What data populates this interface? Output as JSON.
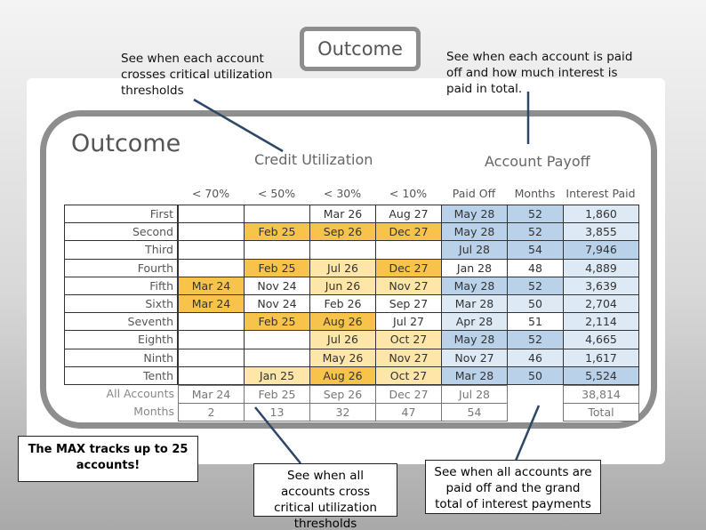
{
  "top_title": "Outcome",
  "callouts": {
    "utilization": "See when each account crosses critical utilization thresholds",
    "payoff": "See when each account is paid off and how much interest is paid in total.",
    "all_utilization": "See when all accounts cross critical utilization thresholds",
    "all_payoff": "See when all accounts are paid off and the grand total of interest payments",
    "max": "The MAX tracks up to 25 accounts!"
  },
  "panel": {
    "title": "Outcome",
    "group_headers": [
      "Credit Utilization",
      "Account Payoff"
    ],
    "columns": [
      "< 70%",
      "< 50%",
      "< 30%",
      "< 10%",
      "Paid Off",
      "Months",
      "Interest Paid"
    ],
    "rows": [
      {
        "label": "First",
        "cells": [
          null,
          null,
          "Mar 26",
          "Aug 27",
          "May 28",
          52,
          "1,860"
        ],
        "fills": [
          null,
          null,
          null,
          null,
          "#b9d2ea",
          "#b9d2ea",
          "#dde9f5"
        ]
      },
      {
        "label": "Second",
        "cells": [
          null,
          "Feb 25",
          "Sep 26",
          "Dec 27",
          "May 28",
          52,
          "3,855"
        ],
        "fills": [
          null,
          "#f7c34a",
          "#f7c34a",
          "#f7c34a",
          "#b9d2ea",
          "#b9d2ea",
          "#dde9f5"
        ]
      },
      {
        "label": "Third",
        "cells": [
          null,
          null,
          null,
          null,
          "Jul 28",
          54,
          "7,946"
        ],
        "fills": [
          null,
          null,
          null,
          null,
          "#b9d2ea",
          "#b9d2ea",
          "#b9d2ea"
        ]
      },
      {
        "label": "Fourth",
        "cells": [
          null,
          "Feb 25",
          "Jul 26",
          "Dec 27",
          "Jan 28",
          48,
          "4,889"
        ],
        "fills": [
          null,
          "#f7c34a",
          "#fde6a8",
          "#f7c34a",
          null,
          null,
          "#dde9f5"
        ]
      },
      {
        "label": "Fifth",
        "cells": [
          "Mar 24",
          "Nov 24",
          "Jun 26",
          "Nov 27",
          "May 28",
          52,
          "3,639"
        ],
        "fills": [
          "#f7c34a",
          null,
          "#fde6a8",
          "#fde6a8",
          "#b9d2ea",
          "#b9d2ea",
          "#dde9f5"
        ]
      },
      {
        "label": "Sixth",
        "cells": [
          "Mar 24",
          "Nov 24",
          "Feb 26",
          "Sep 27",
          "Mar 28",
          50,
          "2,704"
        ],
        "fills": [
          "#f7c34a",
          null,
          null,
          null,
          "#dde9f5",
          "#dde9f5",
          "#dde9f5"
        ]
      },
      {
        "label": "Seventh",
        "cells": [
          null,
          "Feb 25",
          "Aug 26",
          "Jul 27",
          "Apr 28",
          51,
          "2,114"
        ],
        "fills": [
          null,
          "#f7c34a",
          "#f7c34a",
          null,
          "#dde9f5",
          null,
          "#dde9f5"
        ]
      },
      {
        "label": "Eighth",
        "cells": [
          null,
          null,
          "Jul 26",
          "Oct 27",
          "May 28",
          52,
          "4,665"
        ],
        "fills": [
          null,
          null,
          "#fde6a8",
          "#fde6a8",
          "#b9d2ea",
          "#b9d2ea",
          "#dde9f5"
        ]
      },
      {
        "label": "Ninth",
        "cells": [
          null,
          null,
          "May 26",
          "Nov 27",
          "Nov 27",
          46,
          "1,617"
        ],
        "fills": [
          null,
          null,
          "#fde6a8",
          "#fde6a8",
          "#dde9f5",
          "#dde9f5",
          "#dde9f5"
        ]
      },
      {
        "label": "Tenth",
        "cells": [
          null,
          "Jan 25",
          "Aug 26",
          "Oct 27",
          "Mar 28",
          50,
          "5,524"
        ],
        "fills": [
          null,
          "#fde6a8",
          "#f7c34a",
          "#fde6a8",
          "#b9d2ea",
          "#b9d2ea",
          "#b9d2ea"
        ]
      }
    ],
    "summary": [
      {
        "label": "All Accounts",
        "cells": [
          "Mar 24",
          "Feb 25",
          "Sep 26",
          "Dec 27",
          "Jul 28",
          null,
          "38,814"
        ]
      },
      {
        "label": "Months",
        "cells": [
          2,
          13,
          32,
          47,
          54,
          null,
          "Total"
        ]
      }
    ]
  }
}
